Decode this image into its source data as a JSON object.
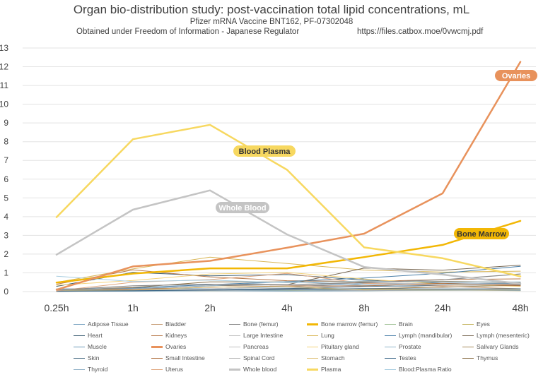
{
  "header": {
    "title": "Organ bio-distribution study: post-vaccination total lipid concentrations, mL",
    "subtitle": "Pfizer mRNA Vaccine BNT162, PF-07302048",
    "source": "Obtained under Freedom of Information - Japanese Regulator",
    "url": "https://files.catbox.moe/0vwcmj.pdf"
  },
  "chart_data": {
    "type": "line",
    "title": "Organ bio-distribution study: post-vaccination total lipid concentrations, mL",
    "categories": [
      "0.25h",
      "1h",
      "2h",
      "4h",
      "8h",
      "24h",
      "48h"
    ],
    "ylim": [
      0,
      13
    ],
    "yticks": [
      0,
      1,
      2,
      3,
      4,
      5,
      6,
      7,
      8,
      9,
      10,
      11,
      12,
      13
    ],
    "grid": true,
    "legend_position": "bottom",
    "series": [
      {
        "name": "Adipose Tissue",
        "color": "#7fa7c4",
        "width": 1,
        "values": [
          0.06,
          0.19,
          0.15,
          0.26,
          0.43,
          0.39,
          0.43
        ]
      },
      {
        "name": "Bladder",
        "color": "#c8a07a",
        "width": 1,
        "values": [
          0.04,
          0.12,
          0.11,
          0.09,
          0.12,
          0.27,
          0.15
        ]
      },
      {
        "name": "Bone (femur)",
        "color": "#8c8c8c",
        "width": 1.2,
        "values": [
          0.08,
          0.31,
          0.39,
          0.37,
          0.48,
          0.63,
          0.94
        ]
      },
      {
        "name": "Bone marrow (femur)",
        "color": "#f2b705",
        "width": 2.5,
        "values": [
          0.48,
          0.96,
          1.24,
          1.24,
          1.84,
          2.49,
          3.77
        ]
      },
      {
        "name": "Brain",
        "color": "#a9c7a0",
        "width": 1,
        "values": [
          0.05,
          0.04,
          0.05,
          0.05,
          0.05,
          0.06,
          0.07
        ]
      },
      {
        "name": "Eyes",
        "color": "#c9b96a",
        "width": 1,
        "values": [
          0.01,
          0.03,
          0.05,
          0.07,
          0.14,
          0.09,
          0.05
        ]
      },
      {
        "name": "Heart",
        "color": "#3d5f73",
        "width": 1,
        "values": [
          0.28,
          1.03,
          0.84,
          0.91,
          0.61,
          0.45,
          0.46
        ]
      },
      {
        "name": "Kidneys",
        "color": "#b8794a",
        "width": 1,
        "values": [
          0.39,
          1.16,
          0.78,
          0.58,
          0.54,
          0.64,
          0.68
        ]
      },
      {
        "name": "Large Intestine",
        "color": "#bfbfbf",
        "width": 1,
        "values": [
          0.01,
          0.05,
          0.1,
          0.19,
          0.35,
          0.22,
          0.35
        ]
      },
      {
        "name": "Lung",
        "color": "#d9b657",
        "width": 1,
        "values": [
          0.49,
          1.21,
          1.84,
          1.5,
          1.15,
          1.04,
          1.09
        ]
      },
      {
        "name": "Lymph (mandibular)",
        "color": "#4a7fa8",
        "width": 1,
        "values": [
          0.06,
          0.2,
          0.37,
          0.54,
          0.72,
          0.98,
          1.35
        ]
      },
      {
        "name": "Lymph (mesenteric)",
        "color": "#7a6a55",
        "width": 1,
        "values": [
          0.05,
          0.15,
          0.31,
          0.37,
          1.25,
          1.14,
          1.41
        ]
      },
      {
        "name": "Muscle",
        "color": "#6b9bb8",
        "width": 1,
        "values": [
          0.02,
          0.02,
          0.05,
          0.03,
          0.04,
          0.09,
          0.06
        ]
      },
      {
        "name": "Ovaries",
        "color": "#e8925c",
        "width": 2.5,
        "values": [
          0.1,
          1.34,
          1.64,
          2.34,
          3.09,
          5.24,
          12.26
        ]
      },
      {
        "name": "Pancreas",
        "color": "#c0c0c0",
        "width": 1,
        "values": [
          0.08,
          0.09,
          0.14,
          0.3,
          0.47,
          0.41,
          0.5
        ]
      },
      {
        "name": "Pituitary gland",
        "color": "#f3d27a",
        "width": 1,
        "values": [
          0.34,
          0.59,
          0.94,
          1.03,
          0.67,
          0.4,
          0.27
        ]
      },
      {
        "name": "Prostate",
        "color": "#8fb6c9",
        "width": 1,
        "values": [
          0.06,
          0.04,
          0.06,
          0.08,
          0.17,
          0.12,
          0.09
        ]
      },
      {
        "name": "Salivary Glands",
        "color": "#a68a5a",
        "width": 1,
        "values": [
          0.04,
          0.07,
          0.08,
          0.15,
          0.15,
          0.24,
          0.34
        ]
      },
      {
        "name": "Skin",
        "color": "#4d6f87",
        "width": 1,
        "values": [
          0.01,
          0.04,
          0.09,
          0.16,
          0.27,
          0.33,
          0.37
        ]
      },
      {
        "name": "Small Intestine",
        "color": "#b07040",
        "width": 1,
        "values": [
          0.03,
          0.12,
          0.23,
          0.3,
          0.3,
          0.44,
          0.31
        ]
      },
      {
        "name": "Spinal Cord",
        "color": "#b5b5b5",
        "width": 1,
        "values": [
          0.04,
          0.06,
          0.06,
          0.09,
          0.06,
          0.07,
          0.08
        ]
      },
      {
        "name": "Stomach",
        "color": "#e0c27a",
        "width": 1,
        "values": [
          0.06,
          0.08,
          0.24,
          0.28,
          0.09,
          0.12,
          0.13
        ]
      },
      {
        "name": "Testes",
        "color": "#3f6a8a",
        "width": 1,
        "values": [
          0.03,
          0.05,
          0.08,
          0.12,
          0.15,
          0.14,
          0.15
        ]
      },
      {
        "name": "Thymus",
        "color": "#8a7048",
        "width": 1,
        "values": [
          0.09,
          0.22,
          0.52,
          0.52,
          0.51,
          0.55,
          0.5
        ]
      },
      {
        "name": "Thyroid",
        "color": "#92b1c7",
        "width": 1,
        "values": [
          0.15,
          0.15,
          0.3,
          0.54,
          0.35,
          0.39,
          0.41
        ]
      },
      {
        "name": "Uterus",
        "color": "#e0a880",
        "width": 1,
        "values": [
          0.04,
          0.5,
          0.64,
          0.97,
          0.44,
          0.33,
          0.39
        ]
      },
      {
        "name": "Whole blood",
        "color": "#c4c4c4",
        "width": 2.5,
        "values": [
          1.97,
          4.37,
          5.4,
          3.05,
          1.31,
          0.91,
          0.42
        ]
      },
      {
        "name": "Plasma",
        "color": "#f7d860",
        "width": 2.5,
        "values": [
          3.97,
          8.13,
          8.9,
          6.5,
          2.36,
          1.78,
          0.81
        ]
      },
      {
        "name": "Blood:Plasma Ratio",
        "color": "#a8cde0",
        "width": 1,
        "values": [
          0.82,
          0.54,
          0.61,
          0.47,
          0.56,
          0.52,
          0.52
        ]
      }
    ],
    "annotations": [
      {
        "text": "Ovaries",
        "color": "#e8925c",
        "text_color": "#ffffff"
      },
      {
        "text": "Blood Plasma",
        "color": "#f7d860",
        "text_color": "#333333"
      },
      {
        "text": "Whole Blood",
        "color": "#c4c4c4",
        "text_color": "#ffffff"
      },
      {
        "text": "Bone Marrow",
        "color": "#f2b705",
        "text_color": "#333333"
      }
    ]
  }
}
